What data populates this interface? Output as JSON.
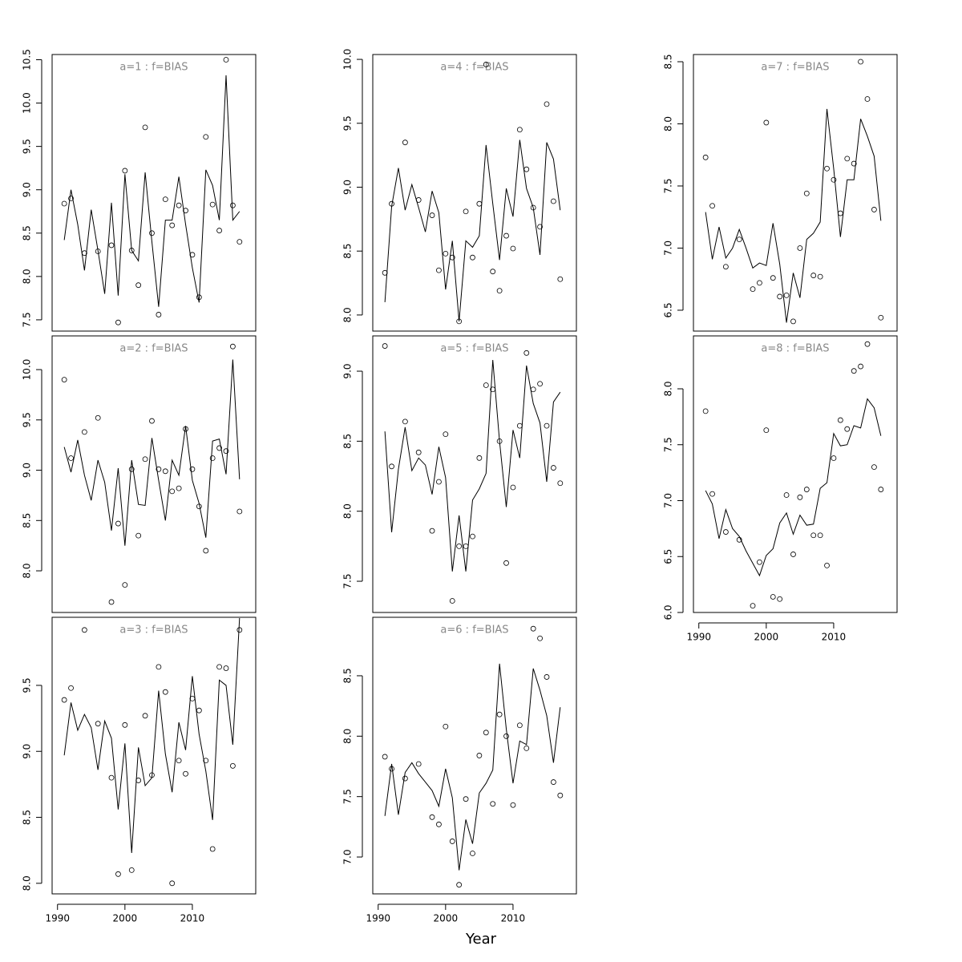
{
  "xlabel": "Year",
  "chart_data": [
    {
      "type": "line",
      "title": "a=1  :  f=BIAS",
      "x": [
        1991,
        1992,
        1993,
        1994,
        1995,
        1996,
        1997,
        1998,
        1999,
        2000,
        2001,
        2002,
        2003,
        2004,
        2005,
        2006,
        2007,
        2008,
        2009,
        2010,
        2011,
        2012,
        2013,
        2014,
        2015,
        2016,
        2017
      ],
      "xlim": [
        1989.2,
        2019.4
      ],
      "ylim": [
        7.37,
        10.56
      ],
      "yticks": [
        7.5,
        {
          "value": 8,
          "label": "8.0"
        },
        8.5,
        {
          "value": 9,
          "label": "9.0"
        },
        9.5,
        {
          "value": 10,
          "label": "10.0"
        },
        10.5
      ],
      "series": [
        {
          "marker": "line",
          "color": "#000000",
          "values": [
            8.42,
            9.0,
            8.6,
            8.07,
            8.77,
            8.3,
            7.8,
            8.85,
            7.78,
            9.18,
            8.3,
            8.18,
            9.2,
            8.4,
            7.65,
            8.65,
            8.65,
            9.15,
            8.6,
            8.1,
            7.7,
            9.23,
            9.05,
            8.65,
            10.32,
            8.65,
            8.75
          ]
        },
        {
          "marker": "circle",
          "color": "#000000",
          "values": [
            8.84,
            8.9,
            null,
            8.27,
            null,
            8.29,
            null,
            8.36,
            7.47,
            9.22,
            8.3,
            7.9,
            9.72,
            8.5,
            7.56,
            8.89,
            8.59,
            8.82,
            8.76,
            8.25,
            7.76,
            9.61,
            8.83,
            8.53,
            10.5,
            8.82,
            8.4
          ]
        }
      ]
    },
    {
      "type": "line",
      "title": "a=2  :  f=BIAS",
      "x": [
        1991,
        1992,
        1993,
        1994,
        1995,
        1996,
        1997,
        1998,
        1999,
        2000,
        2001,
        2002,
        2003,
        2004,
        2005,
        2006,
        2007,
        2008,
        2009,
        2010,
        2011,
        2012,
        2013,
        2014,
        2015,
        2016,
        2017
      ],
      "xlim": [
        1989.2,
        2019.4
      ],
      "ylim": [
        7.586,
        10.335
      ],
      "yticks": [
        {
          "value": 8,
          "label": "8.0"
        },
        8.5,
        {
          "value": 9,
          "label": "9.0"
        },
        9.5,
        {
          "value": 10,
          "label": "10.0"
        }
      ],
      "series": [
        {
          "marker": "line",
          "color": "#000000",
          "values": [
            9.23,
            8.98,
            9.3,
            8.95,
            8.7,
            9.1,
            8.88,
            8.4,
            9.02,
            8.25,
            9.1,
            8.66,
            8.65,
            9.32,
            8.9,
            8.5,
            9.1,
            8.95,
            9.44,
            8.9,
            8.67,
            8.33,
            9.29,
            9.31,
            8.96,
            10.1,
            8.91
          ]
        },
        {
          "marker": "circle",
          "color": "#000000",
          "values": [
            9.9,
            9.12,
            null,
            9.38,
            null,
            9.52,
            null,
            7.69,
            8.47,
            7.86,
            9.01,
            8.35,
            9.11,
            9.49,
            9.01,
            8.99,
            8.79,
            8.82,
            9.41,
            9.01,
            8.64,
            8.2,
            9.12,
            9.22,
            9.19,
            10.23,
            8.59
          ]
        }
      ]
    },
    {
      "type": "line",
      "title": "a=3  :  f=BIAS",
      "x": [
        1991,
        1992,
        1993,
        1994,
        1995,
        1996,
        1997,
        1998,
        1999,
        2000,
        2001,
        2002,
        2003,
        2004,
        2005,
        2006,
        2007,
        2008,
        2009,
        2010,
        2011,
        2012,
        2013,
        2014,
        2015,
        2016,
        2017
      ],
      "xlim": [
        1989.2,
        2019.4
      ],
      "ylim": [
        7.92,
        10.016
      ],
      "xticks": [
        1990,
        2000,
        2010
      ],
      "yticks": [
        {
          "value": 8,
          "label": "8.0"
        },
        8.5,
        {
          "value": 9,
          "label": "9.0"
        },
        9.5
      ],
      "series": [
        {
          "marker": "line",
          "color": "#000000",
          "values": [
            8.97,
            9.37,
            9.16,
            9.28,
            9.18,
            8.86,
            9.23,
            9.1,
            8.56,
            9.06,
            8.23,
            9.03,
            8.74,
            8.8,
            9.46,
            8.98,
            8.69,
            9.22,
            9.01,
            9.57,
            9.13,
            8.85,
            8.48,
            9.54,
            9.5,
            9.05,
            10.01
          ]
        },
        {
          "marker": "circle",
          "color": "#000000",
          "values": [
            9.39,
            9.48,
            null,
            9.92,
            null,
            9.21,
            null,
            8.8,
            8.07,
            9.2,
            8.1,
            8.78,
            9.27,
            8.82,
            9.64,
            9.45,
            8.0,
            8.93,
            8.83,
            9.4,
            9.31,
            8.93,
            8.26,
            9.64,
            9.63,
            8.89,
            9.92
          ]
        }
      ]
    },
    {
      "type": "line",
      "title": "a=4  :  f=BIAS",
      "x": [
        1991,
        1992,
        1993,
        1994,
        1995,
        1996,
        1997,
        1998,
        1999,
        2000,
        2001,
        2002,
        2003,
        2004,
        2005,
        2006,
        2007,
        2008,
        2009,
        2010,
        2011,
        2012,
        2013,
        2014,
        2015,
        2016,
        2017
      ],
      "xlim": [
        1989.2,
        2019.4
      ],
      "ylim": [
        7.874,
        10.038
      ],
      "yticks": [
        {
          "value": 8,
          "label": "8.0"
        },
        8.5,
        {
          "value": 9,
          "label": "9.0"
        },
        9.5,
        {
          "value": 10,
          "label": "10.0"
        }
      ],
      "series": [
        {
          "marker": "line",
          "color": "#000000",
          "values": [
            8.1,
            8.85,
            9.15,
            8.82,
            9.02,
            8.84,
            8.65,
            8.97,
            8.8,
            8.2,
            8.58,
            7.95,
            8.58,
            8.53,
            8.62,
            9.33,
            8.87,
            8.43,
            8.99,
            8.77,
            9.37,
            8.99,
            8.84,
            8.47,
            9.35,
            9.22,
            8.82
          ]
        },
        {
          "marker": "circle",
          "color": "#000000",
          "values": [
            8.33,
            8.87,
            null,
            9.35,
            null,
            8.9,
            null,
            8.78,
            8.35,
            8.48,
            8.45,
            7.95,
            8.81,
            8.45,
            8.87,
            9.96,
            8.34,
            8.19,
            8.62,
            8.52,
            9.45,
            9.14,
            8.84,
            8.69,
            9.65,
            8.89,
            8.28
          ]
        }
      ]
    },
    {
      "type": "line",
      "title": "a=5  :  f=BIAS",
      "x": [
        1991,
        1992,
        1993,
        1994,
        1995,
        1996,
        1997,
        1998,
        1999,
        2000,
        2001,
        2002,
        2003,
        2004,
        2005,
        2006,
        2007,
        2008,
        2009,
        2010,
        2011,
        2012,
        2013,
        2014,
        2015,
        2016,
        2017
      ],
      "xlim": [
        1989.2,
        2019.4
      ],
      "ylim": [
        7.277,
        9.252
      ],
      "yticks": [
        7.5,
        {
          "value": 8,
          "label": "8.0"
        },
        8.5,
        {
          "value": 9,
          "label": "9.0"
        }
      ],
      "series": [
        {
          "marker": "line",
          "color": "#000000",
          "values": [
            8.57,
            7.85,
            8.3,
            8.6,
            8.29,
            8.38,
            8.33,
            8.12,
            8.46,
            8.24,
            7.57,
            7.97,
            7.57,
            8.08,
            8.16,
            8.27,
            9.08,
            8.5,
            8.03,
            8.58,
            8.38,
            9.04,
            8.77,
            8.63,
            8.21,
            8.78,
            8.85
          ]
        },
        {
          "marker": "circle",
          "color": "#000000",
          "values": [
            9.18,
            8.32,
            null,
            8.64,
            null,
            8.42,
            null,
            7.86,
            8.21,
            8.55,
            7.36,
            7.75,
            7.75,
            7.82,
            8.38,
            8.9,
            8.87,
            8.5,
            7.63,
            8.17,
            8.61,
            9.13,
            8.87,
            8.91,
            8.61,
            8.31,
            8.2
          ]
        }
      ]
    },
    {
      "type": "line",
      "title": "a=6  :  f=BIAS",
      "x": [
        1991,
        1992,
        1993,
        1994,
        1995,
        1996,
        1997,
        1998,
        1999,
        2000,
        2001,
        2002,
        2003,
        2004,
        2005,
        2006,
        2007,
        2008,
        2009,
        2010,
        2011,
        2012,
        2013,
        2014,
        2015,
        2016,
        2017
      ],
      "xlim": [
        1989.2,
        2019.4
      ],
      "ylim": [
        6.695,
        8.984
      ],
      "xticks": [
        1990,
        2000,
        2010
      ],
      "yticks": [
        {
          "value": 7,
          "label": "7.0"
        },
        7.5,
        {
          "value": 8,
          "label": "8.0"
        },
        8.5
      ],
      "series": [
        {
          "marker": "line",
          "color": "#000000",
          "values": [
            7.34,
            7.77,
            7.35,
            7.7,
            7.78,
            7.69,
            7.62,
            7.55,
            7.42,
            7.73,
            7.49,
            6.89,
            7.31,
            7.11,
            7.53,
            7.61,
            7.72,
            8.6,
            8.06,
            7.61,
            7.96,
            7.93,
            8.56,
            8.38,
            8.17,
            7.78,
            8.24
          ]
        },
        {
          "marker": "circle",
          "color": "#000000",
          "values": [
            7.83,
            7.73,
            null,
            7.65,
            null,
            7.77,
            null,
            7.33,
            7.27,
            8.08,
            7.13,
            6.77,
            7.48,
            7.03,
            7.84,
            8.03,
            7.44,
            8.18,
            8.0,
            7.43,
            8.09,
            7.9,
            8.89,
            8.81,
            8.49,
            7.62,
            7.51
          ]
        }
      ]
    },
    {
      "type": "line",
      "title": "a=7  :  f=BIAS",
      "x": [
        1991,
        1992,
        1993,
        1994,
        1995,
        1996,
        1997,
        1998,
        1999,
        2000,
        2001,
        2002,
        2003,
        2004,
        2005,
        2006,
        2007,
        2008,
        2009,
        2010,
        2011,
        2012,
        2013,
        2014,
        2015,
        2016,
        2017
      ],
      "xlim": [
        1989.2,
        2019.4
      ],
      "ylim": [
        6.332,
        8.558
      ],
      "yticks": [
        6.5,
        {
          "value": 7,
          "label": "7.0"
        },
        7.5,
        {
          "value": 8,
          "label": "8.0"
        },
        8.5
      ],
      "series": [
        {
          "marker": "line",
          "color": "#000000",
          "values": [
            7.29,
            6.91,
            7.17,
            6.92,
            7.0,
            7.15,
            7.0,
            6.84,
            6.88,
            6.86,
            7.2,
            6.87,
            6.4,
            6.8,
            6.6,
            7.07,
            7.12,
            7.21,
            8.12,
            7.64,
            7.09,
            7.55,
            7.55,
            8.04,
            7.9,
            7.74,
            7.22
          ]
        },
        {
          "marker": "circle",
          "color": "#000000",
          "values": [
            7.73,
            7.34,
            null,
            6.85,
            null,
            7.07,
            null,
            6.67,
            6.72,
            8.01,
            6.76,
            6.61,
            6.62,
            6.41,
            7.0,
            7.44,
            6.78,
            6.77,
            7.64,
            7.55,
            7.28,
            7.72,
            7.68,
            8.5,
            8.2,
            7.31,
            6.44
          ]
        }
      ]
    },
    {
      "type": "line",
      "title": "a=8  :  f=BIAS",
      "x": [
        1991,
        1992,
        1993,
        1994,
        1995,
        1996,
        1997,
        1998,
        1999,
        2000,
        2001,
        2002,
        2003,
        2004,
        2005,
        2006,
        2007,
        2008,
        2009,
        2010,
        2011,
        2012,
        2013,
        2014,
        2015,
        2016,
        2017
      ],
      "xlim": [
        1989.2,
        2019.4
      ],
      "ylim": [
        6.0,
        8.473
      ],
      "xticks": [
        1990,
        2000,
        2010
      ],
      "yticks": [
        {
          "value": 6,
          "label": "6.0"
        },
        6.5,
        {
          "value": 7,
          "label": "7.0"
        },
        7.5,
        {
          "value": 8,
          "label": "8.0"
        }
      ],
      "series": [
        {
          "marker": "line",
          "color": "#000000",
          "values": [
            7.09,
            6.97,
            6.66,
            6.92,
            6.75,
            6.68,
            6.55,
            6.44,
            6.33,
            6.51,
            6.57,
            6.8,
            6.89,
            6.7,
            6.87,
            6.78,
            6.79,
            7.11,
            7.16,
            7.6,
            7.49,
            7.5,
            7.67,
            7.65,
            7.91,
            7.83,
            7.58
          ]
        },
        {
          "marker": "circle",
          "color": "#000000",
          "values": [
            7.8,
            7.06,
            null,
            6.72,
            null,
            6.65,
            null,
            6.06,
            6.45,
            7.63,
            6.14,
            6.12,
            7.05,
            6.52,
            7.03,
            7.1,
            6.69,
            6.69,
            6.42,
            7.38,
            7.72,
            7.64,
            8.16,
            8.2,
            8.4,
            7.3,
            7.1
          ]
        }
      ]
    }
  ]
}
